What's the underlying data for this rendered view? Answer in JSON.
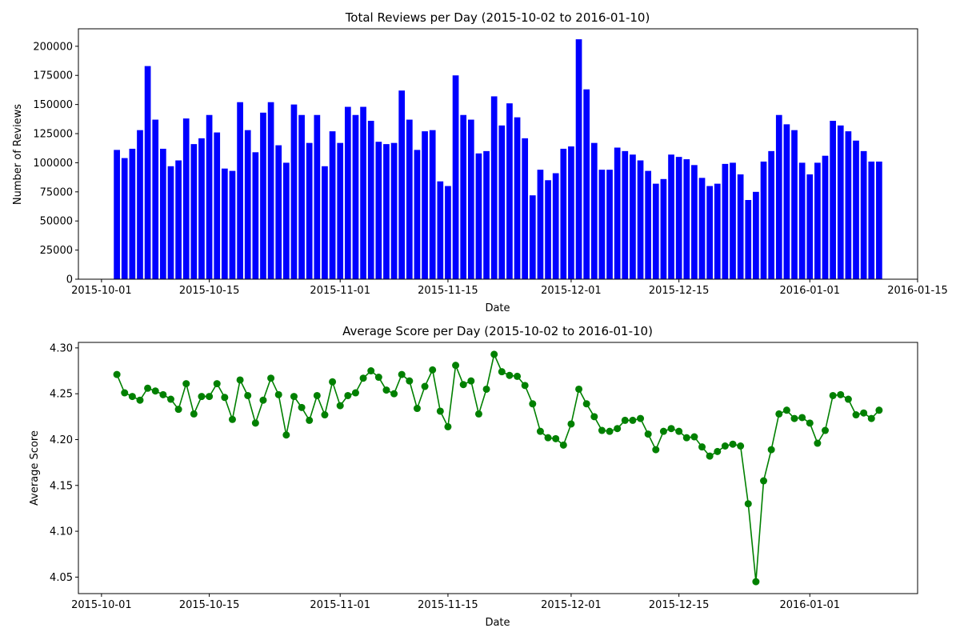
{
  "chart_data": [
    {
      "type": "bar",
      "title": "Total Reviews per Day (2015-10-02 to 2016-01-10)",
      "xlabel": "Date",
      "ylabel": "Number of Reviews",
      "ylim": [
        0,
        215000
      ],
      "xlim": [
        "2015-09-28",
        "2016-01-15"
      ],
      "x_ticks": [
        "2015-10-01",
        "2015-10-15",
        "2015-11-01",
        "2015-11-15",
        "2015-12-01",
        "2015-12-15",
        "2016-01-01",
        "2016-01-15"
      ],
      "y_ticks": [
        "0",
        "25000",
        "50000",
        "75000",
        "100000",
        "125000",
        "150000",
        "175000",
        "200000"
      ],
      "color": "#0000ff",
      "grid": false,
      "dates": [
        "2015-10-03",
        "2015-10-04",
        "2015-10-05",
        "2015-10-06",
        "2015-10-07",
        "2015-10-08",
        "2015-10-09",
        "2015-10-10",
        "2015-10-11",
        "2015-10-12",
        "2015-10-13",
        "2015-10-14",
        "2015-10-15",
        "2015-10-16",
        "2015-10-17",
        "2015-10-18",
        "2015-10-19",
        "2015-10-20",
        "2015-10-21",
        "2015-10-22",
        "2015-10-23",
        "2015-10-24",
        "2015-10-25",
        "2015-10-26",
        "2015-10-27",
        "2015-10-28",
        "2015-10-29",
        "2015-10-30",
        "2015-10-31",
        "2015-11-01",
        "2015-11-02",
        "2015-11-03",
        "2015-11-04",
        "2015-11-05",
        "2015-11-06",
        "2015-11-07",
        "2015-11-08",
        "2015-11-09",
        "2015-11-10",
        "2015-11-11",
        "2015-11-12",
        "2015-11-13",
        "2015-11-14",
        "2015-11-15",
        "2015-11-16",
        "2015-11-17",
        "2015-11-18",
        "2015-11-19",
        "2015-11-20",
        "2015-11-21",
        "2015-11-22",
        "2015-11-23",
        "2015-11-24",
        "2015-11-25",
        "2015-11-26",
        "2015-11-27",
        "2015-11-28",
        "2015-11-29",
        "2015-11-30",
        "2015-12-01",
        "2015-12-02",
        "2015-12-03",
        "2015-12-04",
        "2015-12-05",
        "2015-12-06",
        "2015-12-07",
        "2015-12-08",
        "2015-12-09",
        "2015-12-10",
        "2015-12-11",
        "2015-12-12",
        "2015-12-13",
        "2015-12-14",
        "2015-12-15",
        "2015-12-16",
        "2015-12-17",
        "2015-12-18",
        "2015-12-19",
        "2015-12-20",
        "2015-12-21",
        "2015-12-22",
        "2015-12-23",
        "2015-12-24",
        "2015-12-25",
        "2015-12-26",
        "2015-12-27",
        "2015-12-28",
        "2015-12-29",
        "2015-12-30",
        "2015-12-31",
        "2016-01-01",
        "2016-01-02",
        "2016-01-03",
        "2016-01-04",
        "2016-01-05",
        "2016-01-06",
        "2016-01-07",
        "2016-01-08",
        "2016-01-09",
        "2016-01-10"
      ],
      "values": [
        111000,
        104000,
        112000,
        128000,
        183000,
        137000,
        112000,
        97000,
        102000,
        138000,
        116000,
        121000,
        141000,
        126000,
        95000,
        93000,
        152000,
        128000,
        109000,
        143000,
        152000,
        115000,
        100000,
        150000,
        141000,
        117000,
        141000,
        97000,
        127000,
        117000,
        148000,
        141000,
        148000,
        136000,
        118000,
        116000,
        117000,
        162000,
        137000,
        111000,
        127000,
        128000,
        84000,
        80000,
        175000,
        141000,
        137000,
        108000,
        110000,
        157000,
        132000,
        151000,
        139000,
        121000,
        72000,
        94000,
        85000,
        91000,
        112000,
        114000,
        206000,
        163000,
        117000,
        94000,
        94000,
        113000,
        110000,
        107000,
        102000,
        93000,
        82000,
        86000,
        107000,
        105000,
        103000,
        98000,
        87000,
        80000,
        82000,
        99000,
        100000,
        90000,
        68000,
        75000,
        101000,
        110000,
        141000,
        133000,
        128000,
        100000,
        90000,
        100000,
        106000,
        136000,
        132000,
        127000,
        119000,
        110000,
        101000,
        101000
      ]
    },
    {
      "type": "line",
      "title": "Average Score per Day (2015-10-02 to 2016-01-10)",
      "xlabel": "Date",
      "ylabel": "Average Score",
      "ylim": [
        4.032,
        4.306
      ],
      "xlim": [
        "2015-09-28",
        "2016-01-15"
      ],
      "x_ticks": [
        "2015-10-01",
        "2015-10-15",
        "2015-11-01",
        "2015-11-15",
        "2015-12-01",
        "2015-12-15",
        "2016-01-01"
      ],
      "y_ticks": [
        "4.05",
        "4.10",
        "4.15",
        "4.20",
        "4.25",
        "4.30"
      ],
      "color": "#008000",
      "marker": "circle",
      "grid": false,
      "dates": [
        "2015-10-03",
        "2015-10-04",
        "2015-10-05",
        "2015-10-06",
        "2015-10-07",
        "2015-10-08",
        "2015-10-09",
        "2015-10-10",
        "2015-10-11",
        "2015-10-12",
        "2015-10-13",
        "2015-10-14",
        "2015-10-15",
        "2015-10-16",
        "2015-10-17",
        "2015-10-18",
        "2015-10-19",
        "2015-10-20",
        "2015-10-21",
        "2015-10-22",
        "2015-10-23",
        "2015-10-24",
        "2015-10-25",
        "2015-10-26",
        "2015-10-27",
        "2015-10-28",
        "2015-10-29",
        "2015-10-30",
        "2015-10-31",
        "2015-11-01",
        "2015-11-02",
        "2015-11-03",
        "2015-11-04",
        "2015-11-05",
        "2015-11-06",
        "2015-11-07",
        "2015-11-08",
        "2015-11-09",
        "2015-11-10",
        "2015-11-11",
        "2015-11-12",
        "2015-11-13",
        "2015-11-14",
        "2015-11-15",
        "2015-11-16",
        "2015-11-17",
        "2015-11-18",
        "2015-11-19",
        "2015-11-20",
        "2015-11-21",
        "2015-11-22",
        "2015-11-23",
        "2015-11-24",
        "2015-11-25",
        "2015-11-26",
        "2015-11-27",
        "2015-11-28",
        "2015-11-29",
        "2015-11-30",
        "2015-12-01",
        "2015-12-02",
        "2015-12-03",
        "2015-12-04",
        "2015-12-05",
        "2015-12-06",
        "2015-12-07",
        "2015-12-08",
        "2015-12-09",
        "2015-12-10",
        "2015-12-11",
        "2015-12-12",
        "2015-12-13",
        "2015-12-14",
        "2015-12-15",
        "2015-12-16",
        "2015-12-17",
        "2015-12-18",
        "2015-12-19",
        "2015-12-20",
        "2015-12-21",
        "2015-12-22",
        "2015-12-23",
        "2015-12-24",
        "2015-12-25",
        "2015-12-26",
        "2015-12-27",
        "2015-12-28",
        "2015-12-29",
        "2015-12-30",
        "2015-12-31",
        "2016-01-01",
        "2016-01-02",
        "2016-01-03",
        "2016-01-04",
        "2016-01-05",
        "2016-01-06",
        "2016-01-07",
        "2016-01-08",
        "2016-01-09",
        "2016-01-10"
      ],
      "values": [
        4.271,
        4.251,
        4.247,
        4.243,
        4.256,
        4.253,
        4.249,
        4.244,
        4.233,
        4.261,
        4.228,
        4.247,
        4.247,
        4.261,
        4.246,
        4.222,
        4.265,
        4.248,
        4.218,
        4.243,
        4.267,
        4.249,
        4.205,
        4.247,
        4.235,
        4.221,
        4.248,
        4.227,
        4.263,
        4.237,
        4.248,
        4.251,
        4.267,
        4.275,
        4.268,
        4.254,
        4.25,
        4.271,
        4.264,
        4.234,
        4.258,
        4.276,
        4.231,
        4.214,
        4.281,
        4.26,
        4.264,
        4.228,
        4.255,
        4.293,
        4.274,
        4.27,
        4.269,
        4.259,
        4.239,
        4.209,
        4.202,
        4.201,
        4.194,
        4.217,
        4.255,
        4.239,
        4.225,
        4.21,
        4.209,
        4.212,
        4.221,
        4.221,
        4.223,
        4.206,
        4.189,
        4.209,
        4.212,
        4.209,
        4.202,
        4.203,
        4.192,
        4.182,
        4.187,
        4.193,
        4.195,
        4.193,
        4.13,
        4.045,
        4.155,
        4.189,
        4.228,
        4.232,
        4.223,
        4.224,
        4.218,
        4.196,
        4.21,
        4.248,
        4.249,
        4.244,
        4.227,
        4.229,
        4.223,
        4.232
      ]
    }
  ]
}
